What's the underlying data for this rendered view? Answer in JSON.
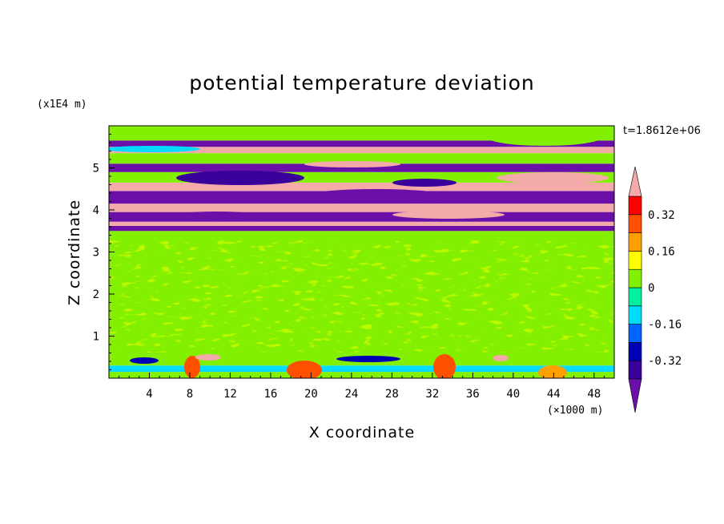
{
  "chart_data": {
    "type": "heatmap",
    "title": "potential temperature deviation",
    "xlabel": "X coordinate",
    "ylabel": "Z coordinate",
    "x_unit": "(×1000 m)",
    "y_unit": "(x1E4 m)",
    "time_label": "t=1.8612e+06",
    "xlim": [
      0,
      50
    ],
    "ylim": [
      0,
      6
    ],
    "x_ticks": [
      4,
      8,
      12,
      16,
      20,
      24,
      28,
      32,
      36,
      40,
      44,
      48
    ],
    "y_ticks": [
      1,
      2,
      3,
      4,
      5
    ],
    "colorbar": {
      "levels": [
        -0.4,
        -0.32,
        -0.24,
        -0.16,
        -0.08,
        0,
        0.08,
        0.16,
        0.24,
        0.32,
        0.4
      ],
      "labels": [
        "0.32",
        "0.16",
        "0",
        "-0.16",
        "-0.32"
      ],
      "label_values": [
        0.32,
        0.16,
        0,
        -0.16,
        -0.32
      ],
      "colors": [
        "#6a0fa8",
        "#3a009c",
        "#0000b4",
        "#0064ff",
        "#00dcff",
        "#00f0a0",
        "#82f000",
        "#ffff00",
        "#ffa000",
        "#ff5000",
        "#ff0000",
        "#f5aaaa"
      ],
      "extend": "both"
    },
    "bands": [
      {
        "z": [
          0.0,
          0.15
        ],
        "value": 0.0
      },
      {
        "z": [
          0.15,
          0.3
        ],
        "value": -0.12
      },
      {
        "z": [
          0.3,
          0.6
        ],
        "value": 0.04
      },
      {
        "z": [
          0.6,
          3.5
        ],
        "value": 0.04
      },
      {
        "z": [
          3.5,
          3.62
        ],
        "value": -0.45
      },
      {
        "z": [
          3.62,
          3.72
        ],
        "value": 0.45
      },
      {
        "z": [
          3.72,
          3.95
        ],
        "value": -0.45
      },
      {
        "z": [
          3.95,
          4.15
        ],
        "value": 0.45
      },
      {
        "z": [
          4.15,
          4.45
        ],
        "value": -0.45
      },
      {
        "z": [
          4.45,
          4.65
        ],
        "value": 0.45
      },
      {
        "z": [
          4.65,
          4.9
        ],
        "value": 0.04
      },
      {
        "z": [
          4.9,
          5.1
        ],
        "value": -0.45
      },
      {
        "z": [
          5.1,
          5.35
        ],
        "value": 0.04
      },
      {
        "z": [
          5.35,
          5.5
        ],
        "value": 0.45
      },
      {
        "z": [
          5.5,
          5.65
        ],
        "value": -0.45
      },
      {
        "z": [
          5.65,
          6.0
        ],
        "value": 0.06
      }
    ],
    "grid": false,
    "legend": "right"
  }
}
